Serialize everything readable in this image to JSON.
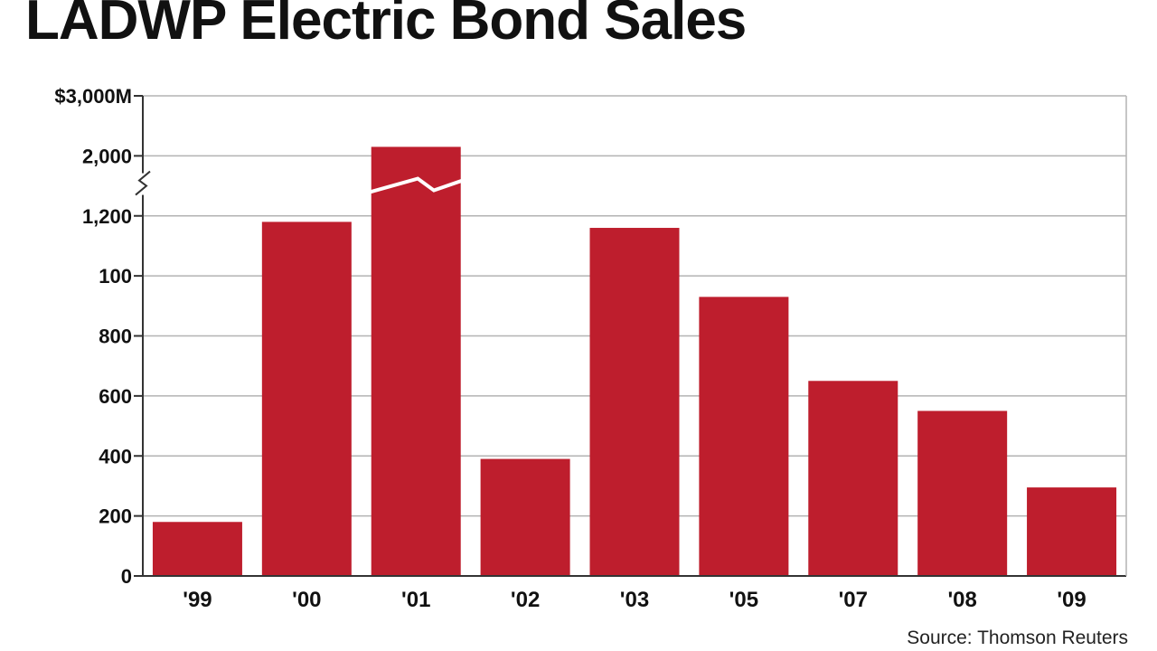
{
  "colors": {
    "bar": "#be1e2d",
    "grid": "#b3b3b3",
    "axis": "#333333",
    "text": "#111111",
    "break": "#ffffff"
  },
  "source": "Source: Thomson Reuters",
  "chart_data": {
    "type": "bar",
    "title": "LADWP Electric Bond Sales",
    "xlabel": "",
    "ylabel": "",
    "y_ticks": [
      "0",
      "200",
      "400",
      "600",
      "800",
      "100",
      "1,200",
      "2,000",
      "$3,000M"
    ],
    "axis_break": "y axis broken between 1,200 and 2,000; '01 bar broken",
    "categories": [
      "'99",
      "'00",
      "'01",
      "'02",
      "'03",
      "'05",
      "'07",
      "'08",
      "'09"
    ],
    "values": [
      180,
      1180,
      2150,
      390,
      1160,
      930,
      650,
      550,
      295
    ],
    "ylim": [
      0,
      3000
    ],
    "grid": true,
    "legend": "none"
  }
}
